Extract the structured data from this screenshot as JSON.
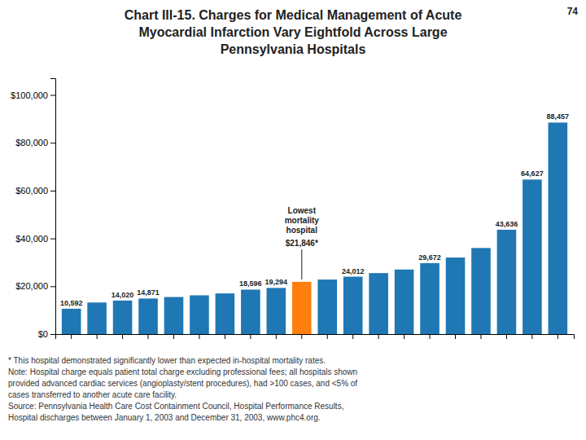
{
  "chart_data": {
    "type": "bar",
    "title": "Chart III-15. Charges for Medical Management of Acute\nMyocardial Infarction Vary Eightfold Across Large\nPennsylvania Hospitals",
    "page_number": "74",
    "categories": [
      null,
      null,
      null,
      null,
      null,
      null,
      null,
      null,
      null,
      null,
      null,
      null,
      null,
      null,
      null,
      null,
      null,
      null,
      null,
      null
    ],
    "values": [
      10592,
      13200,
      14020,
      14871,
      15500,
      16200,
      17000,
      18596,
      19294,
      21846,
      22800,
      24012,
      25500,
      27000,
      29672,
      32000,
      36000,
      43636,
      64627,
      88457
    ],
    "colors": [
      "#1f77b4",
      "#1f77b4",
      "#1f77b4",
      "#1f77b4",
      "#1f77b4",
      "#1f77b4",
      "#1f77b4",
      "#1f77b4",
      "#1f77b4",
      "#ff7f0e",
      "#1f77b4",
      "#1f77b4",
      "#1f77b4",
      "#1f77b4",
      "#1f77b4",
      "#1f77b4",
      "#1f77b4",
      "#1f77b4",
      "#1f77b4",
      "#1f77b4"
    ],
    "data_labels": true,
    "value_labels": [
      "10,592",
      null,
      "14,020",
      "14,871",
      null,
      null,
      null,
      "18,596",
      "19,294",
      null,
      null,
      "24,012",
      null,
      null,
      "29,672",
      null,
      null,
      "43,636",
      "64,627",
      "88,457"
    ],
    "ylim": [
      0,
      107000
    ],
    "yticks": [
      {
        "value": 0,
        "label": "$0"
      },
      {
        "value": 20000,
        "label": "$20,000"
      },
      {
        "value": 40000,
        "label": "$40,000"
      },
      {
        "value": 60000,
        "label": "$60,000"
      },
      {
        "value": 80000,
        "label": "$80,000"
      },
      {
        "value": 100000,
        "label": "$100,000"
      }
    ],
    "grid": false,
    "annotations": [
      {
        "text": "Lowest\nmortality\nhospital",
        "index": 9
      },
      {
        "text": "$21,846*",
        "index": 9
      }
    ],
    "footnotes": [
      "* This hospital demonstrated significantly lower than expected in-hospital mortality rates.",
      "Note: Hospital charge equals patient total charge excluding professional fees; all hospitals shown",
      "provided advanced cardiac services (angioplasty/stent procedures), had >100 cases, and <5% of",
      "cases transferred to another acute care facility.",
      "Source: Pennsylvania Health Care Cost Containment Council, Hospital Performance Results,",
      "Hospital discharges between January 1, 2003 and December 31, 2003, www.phc4.org."
    ]
  }
}
